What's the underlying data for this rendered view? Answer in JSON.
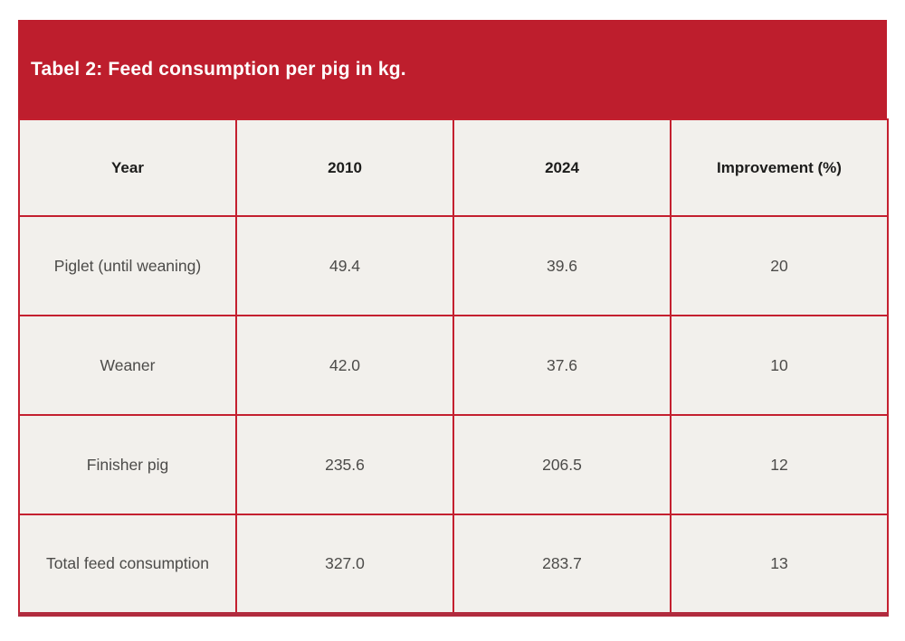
{
  "title": "Tabel 2: Feed consumption per pig in kg.",
  "colors": {
    "band_red": "#be1e2d",
    "border_red": "#c4202f",
    "bottom_rule_red": "#b12b3e",
    "cell_background": "#f2f0ec",
    "header_text": "#1c1c1b",
    "cell_text": "#4c4b49",
    "title_text": "#ffffff"
  },
  "table": {
    "columns": [
      "Year",
      "2010",
      "2024",
      "Improvement (%)"
    ],
    "rows": [
      [
        "Piglet (until weaning)",
        "49.4",
        "39.6",
        "20"
      ],
      [
        "Weaner",
        "42.0",
        "37.6",
        "10"
      ],
      [
        "Finisher pig",
        "235.6",
        "206.5",
        "12"
      ],
      [
        "Total feed consumption",
        "327.0",
        "283.7",
        "13"
      ]
    ]
  },
  "chart_data": {
    "type": "table",
    "title": "Tabel 2: Feed consumption per pig in kg.",
    "categories": [
      "Piglet (until weaning)",
      "Weaner",
      "Finisher pig",
      "Total feed consumption"
    ],
    "series": [
      {
        "name": "2010",
        "values": [
          49.4,
          42.0,
          235.6,
          327.0
        ]
      },
      {
        "name": "2024",
        "values": [
          39.6,
          37.6,
          206.5,
          283.7
        ]
      },
      {
        "name": "Improvement (%)",
        "values": [
          20,
          10,
          12,
          13
        ]
      }
    ]
  }
}
